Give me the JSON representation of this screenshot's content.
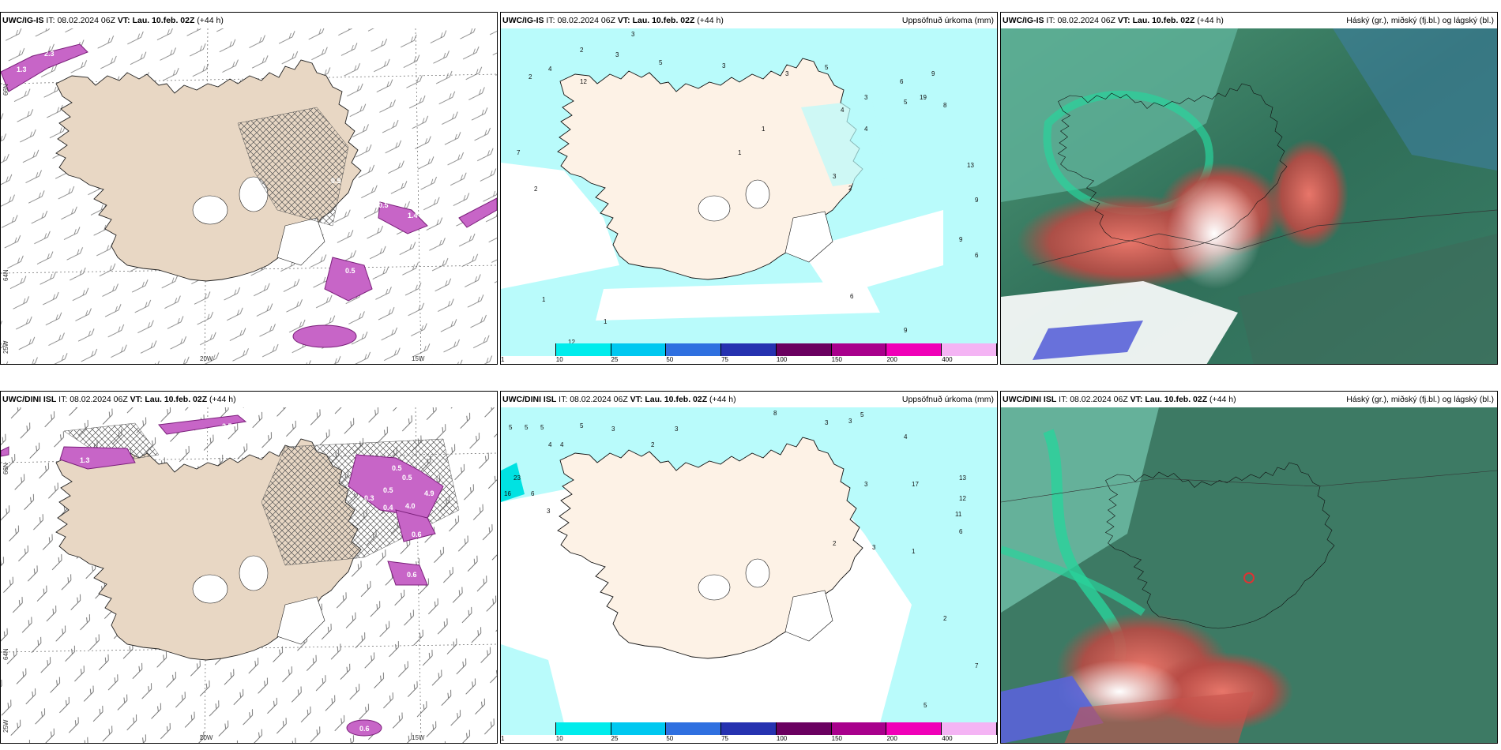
{
  "rows": [
    {
      "model": "UWC/IG-IS",
      "it_label": "IT:",
      "it_value": "08.02.2024 06Z",
      "vt_label": "VT:",
      "vt_value": "Lau. 10.feb. 02Z",
      "lead": "(+44 h)"
    },
    {
      "model": "UWC/DINI ISL",
      "it_label": "IT:",
      "it_value": "08.02.2024 06Z",
      "vt_label": "VT:",
      "vt_value": "Lau. 10.feb. 02Z",
      "lead": "(+44 h)"
    }
  ],
  "titles": {
    "precip": "Uppsöfnuð úrkoma (mm)",
    "clouds": "Háský (gr.), miðský (fj.bl.) og lágský (bl.)"
  },
  "axes": {
    "lon_20": "20W",
    "lon_15": "15W",
    "lat_66": "66N",
    "lat_64": "64N",
    "lat_63": "63N",
    "lon_25": "25W"
  },
  "precip_legend": {
    "levels": [
      "1",
      "10",
      "25",
      "50",
      "75",
      "100",
      "150",
      "200",
      "400"
    ],
    "colors": [
      "#b9fbfb",
      "#00ecec",
      "#00c8f0",
      "#2f70e0",
      "#2632b0",
      "#6a0060",
      "#a8008c",
      "#f000b8",
      "#f4b4f4"
    ]
  },
  "colors": {
    "land": "#ede1d3",
    "precip_light": "#b9fbfb",
    "precip_cyan": "#7af4f4",
    "wind_precip": "#d05ad0",
    "cloud_green": "#2a8a6a",
    "cloud_red": "#c04a44"
  },
  "precip_values": {
    "r1": [
      "3",
      "2",
      "3",
      "2",
      "4",
      "5",
      "3",
      "3",
      "5",
      "6",
      "9",
      "3",
      "4",
      "4",
      "5",
      "8",
      "19",
      "7",
      "2",
      "1",
      "12",
      "1",
      "13",
      "9",
      "9",
      "1",
      "6",
      "1",
      "2",
      "3",
      "6",
      "9",
      "12"
    ],
    "r2": [
      "5",
      "5",
      "5",
      "5",
      "3",
      "4",
      "4",
      "3",
      "2",
      "8",
      "3",
      "3",
      "23",
      "16",
      "6",
      "3",
      "5",
      "4",
      "3",
      "17",
      "13",
      "12",
      "11",
      "6",
      "2",
      "1",
      "3",
      "2",
      "7",
      "5",
      "1",
      "26"
    ]
  },
  "wind_labels": {
    "r1": [
      "2.3",
      "1.3",
      "0.6",
      "0.4",
      "0.5",
      "1.4",
      "0.5",
      "0.5",
      "4.3",
      "0.5"
    ],
    "r2": [
      "0.6",
      "2.5",
      "0.5",
      "1.3",
      "0.5",
      "4.9",
      "0.5",
      "4.0",
      "0.4",
      "0.3",
      "0.6",
      "0.6",
      "0.6"
    ]
  }
}
